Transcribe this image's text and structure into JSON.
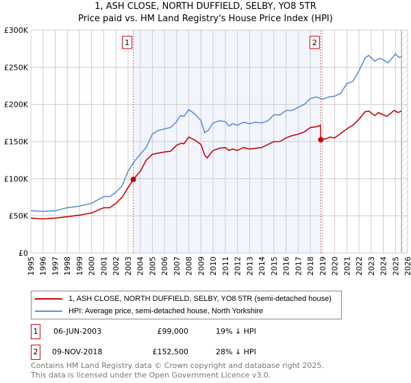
{
  "title_line1": "1, ASH CLOSE, NORTH DUFFIELD, SELBY, YO8 5TR",
  "title_line2": "Price paid vs. HM Land Registry's House Price Index (HPI)",
  "chart_data": {
    "type": "line",
    "title": "1, ASH CLOSE, NORTH DUFFIELD, SELBY, YO8 5TR — Price paid vs. HM Land Registry's House Price Index (HPI)",
    "xlim": [
      1995,
      2026
    ],
    "ylim": [
      0,
      300000
    ],
    "x_ticks": [
      "1995",
      "1996",
      "1997",
      "1998",
      "1999",
      "2000",
      "2001",
      "2002",
      "2003",
      "2004",
      "2005",
      "2006",
      "2007",
      "2008",
      "2009",
      "2010",
      "2011",
      "2012",
      "2013",
      "2014",
      "2015",
      "2016",
      "2017",
      "2018",
      "2019",
      "2020",
      "2021",
      "2022",
      "2023",
      "2024",
      "2025",
      "2026"
    ],
    "y_ticks": [
      {
        "v": 0,
        "label": "£0"
      },
      {
        "v": 50000,
        "label": "£50K"
      },
      {
        "v": 100000,
        "label": "£100K"
      },
      {
        "v": 150000,
        "label": "£150K"
      },
      {
        "v": 200000,
        "label": "£200K"
      },
      {
        "v": 250000,
        "label": "£250K"
      },
      {
        "v": 300000,
        "label": "£300K"
      }
    ],
    "grid": true,
    "shaded_period": [
      2003.43,
      2018.86
    ],
    "forecast_hatch_from": 2025.5,
    "series": [
      {
        "name": "1, ASH CLOSE, NORTH DUFFIELD, SELBY, YO8 5TR (semi-detached house)",
        "color": "#cc0000",
        "x": [
          1995,
          1996,
          1997,
          1998,
          1999,
          2000,
          2001,
          2001.5,
          2002,
          2002.5,
          2003,
          2003.43,
          2004,
          2004.5,
          2005,
          2006,
          2006.5,
          2007,
          2007.4,
          2007.6,
          2008,
          2008.5,
          2009,
          2009.3,
          2009.5,
          2010,
          2010.5,
          2011,
          2011.3,
          2011.6,
          2012,
          2012.5,
          2013,
          2013.5,
          2014,
          2014.5,
          2015,
          2015.5,
          2016,
          2016.5,
          2017,
          2017.5,
          2018,
          2018.5,
          2018.83,
          2018.86,
          2019.3,
          2019.6,
          2020,
          2020.5,
          2021,
          2021.5,
          2022,
          2022.5,
          2022.8,
          2023.3,
          2023.6,
          2024,
          2024.3,
          2024.9,
          2025.2,
          2025.5
        ],
        "y": [
          47,
          46,
          47,
          49,
          51,
          54,
          61,
          61,
          67,
          75,
          88,
          99,
          110,
          125,
          133,
          136,
          137,
          145,
          148,
          147,
          156,
          152,
          146,
          132,
          128,
          138,
          141,
          142,
          138,
          140,
          138,
          142,
          140,
          141,
          142,
          146,
          150,
          150,
          155,
          158,
          160,
          163,
          169,
          170,
          172,
          152.5,
          154,
          156,
          155,
          161,
          167,
          172,
          180,
          190,
          191,
          185,
          189,
          186,
          184,
          192,
          189,
          191
        ]
      },
      {
        "name": "HPI: Average price, semi-detached house, North Yorkshire",
        "color": "#5b8fd6",
        "x": [
          1995,
          1996,
          1997,
          1998,
          1999,
          2000,
          2001,
          2001.5,
          2002,
          2002.5,
          2003,
          2003.5,
          2004,
          2004.5,
          2005,
          2005.5,
          2006,
          2006.5,
          2007,
          2007.3,
          2007.6,
          2008,
          2008.5,
          2009,
          2009.3,
          2009.6,
          2010,
          2010.5,
          2011,
          2011.3,
          2011.6,
          2012,
          2012.5,
          2013,
          2013.5,
          2014,
          2014.5,
          2015,
          2015.5,
          2016,
          2016.5,
          2017,
          2017.5,
          2018,
          2018.5,
          2019,
          2019.5,
          2020,
          2020.5,
          2021,
          2021.5,
          2022,
          2022.5,
          2022.8,
          2023.3,
          2023.7,
          2024,
          2024.4,
          2025,
          2025.3,
          2025.5
        ],
        "y": [
          57,
          56,
          57,
          61,
          63,
          67,
          76,
          76,
          82,
          90,
          110,
          123,
          133,
          142,
          160,
          165,
          167,
          169,
          177,
          185,
          184,
          193,
          187,
          178,
          162,
          165,
          175,
          178,
          177,
          171,
          174,
          172,
          176,
          174,
          176,
          175,
          178,
          186,
          186,
          192,
          192,
          196,
          200,
          208,
          210,
          207,
          210,
          211,
          215,
          228,
          231,
          245,
          262,
          266,
          258,
          262,
          260,
          256,
          268,
          263,
          265
        ]
      }
    ],
    "y_units": "thousands GBP",
    "annotations": [
      {
        "label": "1",
        "x": 2003.43,
        "y": 99
      },
      {
        "label": "2",
        "x": 2018.86,
        "y": 152.5
      }
    ]
  },
  "legend": {
    "items": [
      {
        "label": "1, ASH CLOSE, NORTH DUFFIELD, SELBY, YO8 5TR (semi-detached house)",
        "color": "#cc0000"
      },
      {
        "label": "HPI: Average price, semi-detached house, North Yorkshire",
        "color": "#5b8fd6"
      }
    ]
  },
  "transactions": [
    {
      "num": "1",
      "date": "06-JUN-2003",
      "price": "£99,000",
      "hpi": "19% ↓ HPI"
    },
    {
      "num": "2",
      "date": "09-NOV-2018",
      "price": "£152,500",
      "hpi": "28% ↓ HPI"
    }
  ],
  "footer": {
    "line1": "Contains HM Land Registry data © Crown copyright and database right 2025.",
    "line2": "This data is licensed under the Open Government Licence v3.0."
  }
}
